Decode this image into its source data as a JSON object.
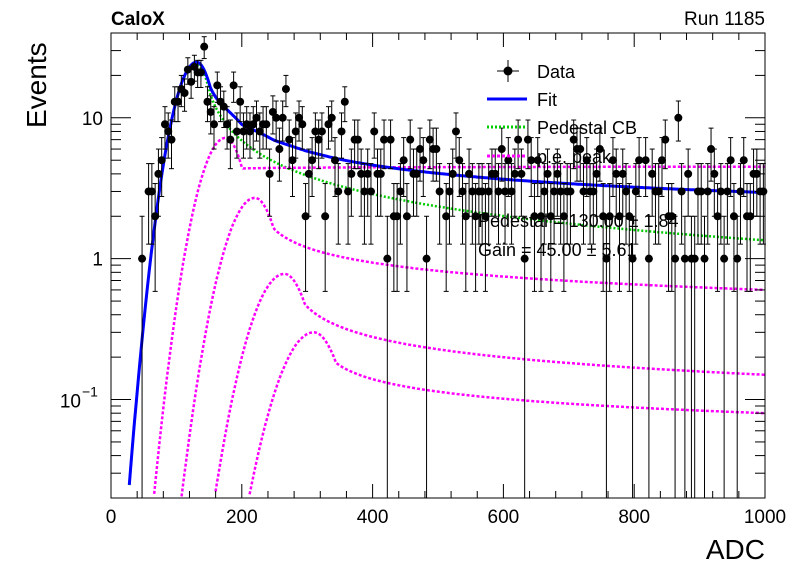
{
  "header": {
    "experiment": "CaloX",
    "run": "Run 1185"
  },
  "chart_data": {
    "type": "scatter",
    "xlabel": "ADC",
    "ylabel": "Events",
    "xlim": [
      0,
      1000
    ],
    "ylim": [
      0.02,
      40
    ],
    "ylog": true,
    "grid": false,
    "legend": "top-right",
    "x_ticks": [
      0,
      200,
      400,
      600,
      800,
      1000
    ],
    "y_ticks": [
      {
        "value": 0.1,
        "base": "10",
        "exp": "−1"
      },
      {
        "value": 1,
        "text": "1"
      },
      {
        "value": 10,
        "text": "10"
      }
    ],
    "legend_entries": {
      "data": "Data",
      "fit": "Fit",
      "pedestal": "Pedestal CB",
      "pe": "p.e. peak"
    },
    "annotations": {
      "pedestal": "Pedestal = 130.00 ± 1.84",
      "gain": "Gain = 45.00 ± 5.61"
    },
    "model": {
      "pedestal_mean": 130.0,
      "pedestal_sigma": 22,
      "pedestal_peak": 24,
      "pedestal_tail_at_1000": 1.35,
      "gain": 45.0,
      "pe_peaks": [
        {
          "mean": 175,
          "peak": 7.2,
          "tail_at_1000": 4.5
        },
        {
          "mean": 220,
          "peak": 2.7,
          "tail_at_1000": 0.6
        },
        {
          "mean": 265,
          "peak": 0.78,
          "tail_at_1000": 0.15
        },
        {
          "mean": 310,
          "peak": 0.3,
          "tail_at_1000": 0.08
        }
      ]
    },
    "colors": {
      "data": "#000000",
      "fit": "#0000ff",
      "pedestal": "#00cc00",
      "pe": "#ff00ff"
    }
  }
}
